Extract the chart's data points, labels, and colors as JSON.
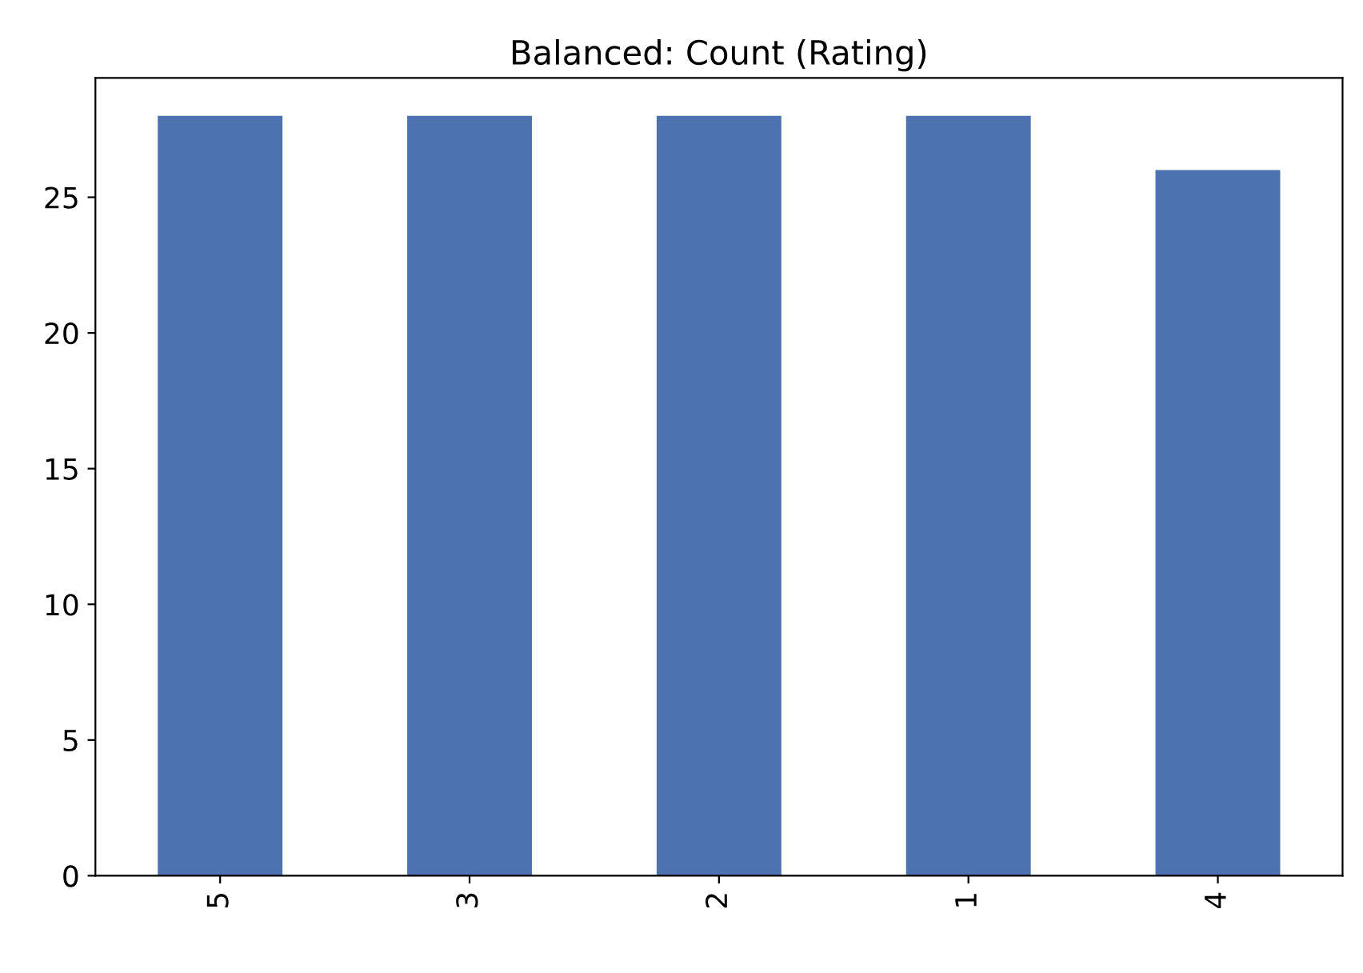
{
  "chart_data": {
    "type": "bar",
    "title": "Balanced: Count (Rating)",
    "categories": [
      "5",
      "3",
      "2",
      "1",
      "4"
    ],
    "values": [
      28,
      28,
      28,
      28,
      26
    ],
    "color": "#4c72b0",
    "ylim": [
      0,
      29.4
    ],
    "yticks": [
      0,
      5,
      10,
      15,
      20,
      25
    ],
    "grid": false,
    "legend": false
  }
}
